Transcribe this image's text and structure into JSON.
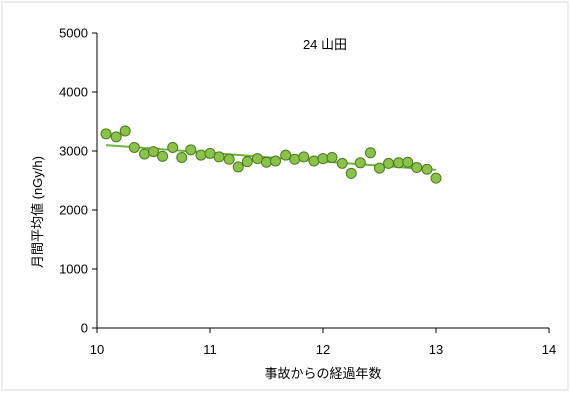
{
  "chart_data": {
    "type": "scatter",
    "title": "24 山田",
    "xlabel": "事故からの経過年数",
    "ylabel": "月間平均値 (nGy/h)",
    "xlim": [
      10,
      14
    ],
    "ylim": [
      0,
      5000
    ],
    "xticks": [
      10,
      11,
      12,
      13,
      14
    ],
    "yticks": [
      0,
      1000,
      2000,
      3000,
      4000,
      5000
    ],
    "grid": false,
    "legend": "none",
    "marker_color": "#8bc34a",
    "marker_edge_color": "#4a7a1e",
    "trend_color": "#6db33f",
    "points": [
      {
        "x": 10.08,
        "y": 3290
      },
      {
        "x": 10.17,
        "y": 3240
      },
      {
        "x": 10.25,
        "y": 3340
      },
      {
        "x": 10.33,
        "y": 3060
      },
      {
        "x": 10.42,
        "y": 2950
      },
      {
        "x": 10.5,
        "y": 2990
      },
      {
        "x": 10.58,
        "y": 2910
      },
      {
        "x": 10.67,
        "y": 3060
      },
      {
        "x": 10.75,
        "y": 2890
      },
      {
        "x": 10.83,
        "y": 3020
      },
      {
        "x": 10.92,
        "y": 2930
      },
      {
        "x": 11.0,
        "y": 2960
      },
      {
        "x": 11.08,
        "y": 2900
      },
      {
        "x": 11.17,
        "y": 2860
      },
      {
        "x": 11.25,
        "y": 2730
      },
      {
        "x": 11.33,
        "y": 2820
      },
      {
        "x": 11.42,
        "y": 2870
      },
      {
        "x": 11.5,
        "y": 2810
      },
      {
        "x": 11.58,
        "y": 2830
      },
      {
        "x": 11.67,
        "y": 2930
      },
      {
        "x": 11.75,
        "y": 2860
      },
      {
        "x": 11.83,
        "y": 2900
      },
      {
        "x": 11.92,
        "y": 2830
      },
      {
        "x": 12.0,
        "y": 2870
      },
      {
        "x": 12.08,
        "y": 2890
      },
      {
        "x": 12.17,
        "y": 2790
      },
      {
        "x": 12.25,
        "y": 2620
      },
      {
        "x": 12.33,
        "y": 2800
      },
      {
        "x": 12.42,
        "y": 2970
      },
      {
        "x": 12.5,
        "y": 2710
      },
      {
        "x": 12.58,
        "y": 2790
      },
      {
        "x": 12.67,
        "y": 2800
      },
      {
        "x": 12.75,
        "y": 2810
      },
      {
        "x": 12.83,
        "y": 2720
      },
      {
        "x": 12.92,
        "y": 2690
      },
      {
        "x": 13.0,
        "y": 2540
      }
    ],
    "trendline": {
      "x": [
        10.08,
        13.0
      ],
      "y": [
        3100,
        2680
      ]
    }
  }
}
